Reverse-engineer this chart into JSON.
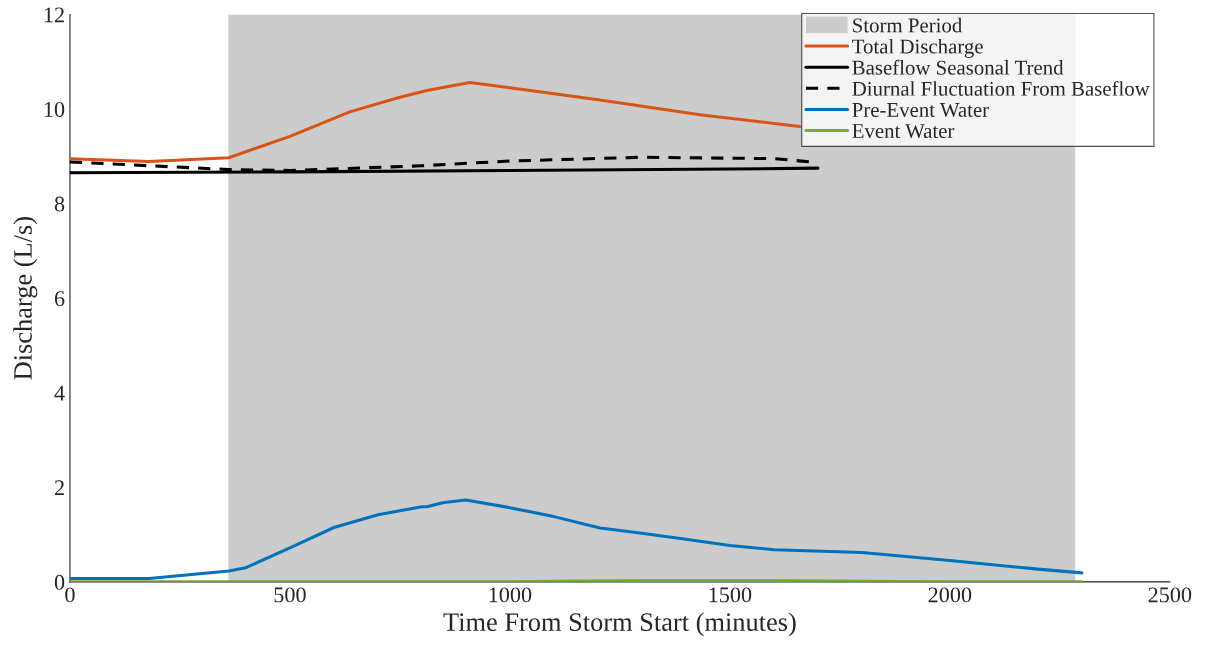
{
  "chart_data": {
    "type": "line",
    "xlabel": "Time From Storm Start (minutes)",
    "ylabel": "Discharge (L/s)",
    "xlim": [
      0,
      2500
    ],
    "xticks": [
      0,
      500,
      1000,
      1500,
      2000,
      2500
    ],
    "ylim": [
      0,
      12
    ],
    "yticks": [
      0,
      2,
      4,
      6,
      8,
      10,
      12
    ],
    "grid": false,
    "legend": "top right",
    "bands": [
      {
        "axis": "x",
        "from": 360,
        "to": 2285,
        "label": "Storm Period",
        "color": "#cccccc"
      }
    ],
    "series": [
      {
        "name": "Total Discharge",
        "color": "#d95319",
        "line_style": "solid",
        "x": [
          0,
          180,
          361,
          500,
          636,
          750,
          811,
          909,
          1000,
          1205,
          1432,
          1659
        ],
        "values": [
          8.95,
          8.89,
          8.97,
          9.42,
          9.94,
          10.25,
          10.39,
          10.56,
          10.45,
          10.19,
          9.88,
          9.63
        ]
      },
      {
        "name": "Baseflow Seasonal Trend",
        "color": "#000000",
        "line_style": "solid",
        "x": [
          0,
          500,
          1000,
          1500,
          1700
        ],
        "values": [
          8.65,
          8.67,
          8.7,
          8.73,
          8.75
        ]
      },
      {
        "name": "Diurnal Fluctuation From Baseflow",
        "color": "#000000",
        "line_style": "dashed",
        "x": [
          0,
          180,
          361,
          500,
          800,
          1000,
          1300,
          1600,
          1700
        ],
        "values": [
          8.88,
          8.8,
          8.72,
          8.7,
          8.8,
          8.9,
          8.98,
          8.95,
          8.87
        ]
      },
      {
        "name": "Pre-Event Water",
        "color": "#0072bd",
        "line_style": "solid",
        "x": [
          0,
          180,
          361,
          400,
          500,
          600,
          700,
          800,
          811,
          850,
          900,
          1000,
          1100,
          1205,
          1300,
          1400,
          1500,
          1600,
          1800,
          2000,
          2200,
          2300
        ],
        "values": [
          0.07,
          0.07,
          0.23,
          0.3,
          0.72,
          1.15,
          1.42,
          1.59,
          1.59,
          1.68,
          1.73,
          1.57,
          1.38,
          1.14,
          1.03,
          0.9,
          0.77,
          0.68,
          0.62,
          0.45,
          0.27,
          0.19
        ]
      },
      {
        "name": "Event Water",
        "color": "#77ac30",
        "line_style": "solid",
        "x": [
          0,
          500,
          1000,
          1100,
          1300,
          1600,
          1800,
          2000,
          2300
        ],
        "values": [
          0,
          0,
          0,
          0.01,
          0.03,
          0.03,
          0.01,
          0,
          0
        ]
      }
    ]
  }
}
